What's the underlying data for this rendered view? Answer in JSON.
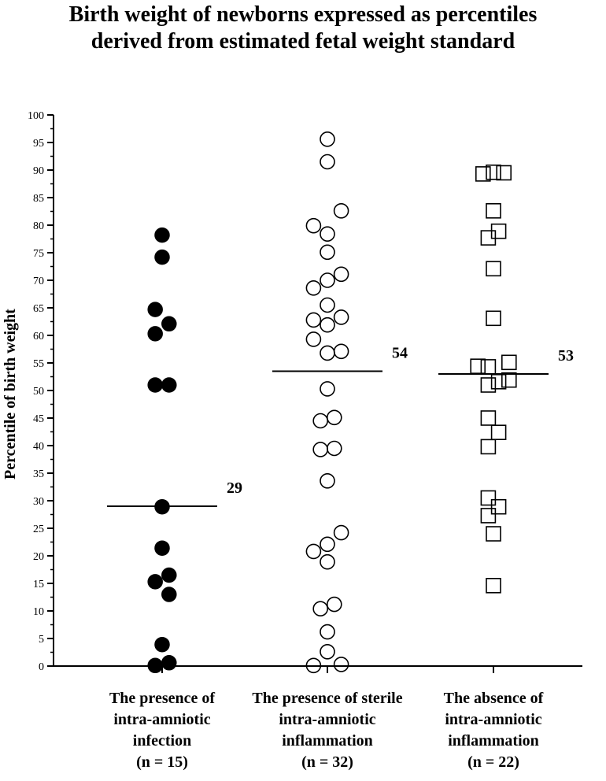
{
  "chart_data": {
    "type": "scatter",
    "title_lines": [
      "Birth weight of newborns expressed as percentiles",
      "derived from estimated fetal weight standard"
    ],
    "ylabel": "Percentile of birth weight",
    "ylim": [
      0,
      100
    ],
    "yticks": [
      "0",
      "5",
      "10",
      "15",
      "20",
      "25",
      "30",
      "35",
      "40",
      "45",
      "50",
      "55",
      "60",
      "65",
      "70",
      "75",
      "80",
      "85",
      "90",
      "95",
      "100"
    ],
    "grid": false,
    "groups": [
      {
        "label_lines": [
          "The presence of",
          "intra-amniotic",
          "infection",
          "(n = 15)"
        ],
        "marker": "filled-circle",
        "median": 29,
        "median_label": "29",
        "points": [
          {
            "y": 78.2,
            "jitter": 0.0
          },
          {
            "y": 74.2,
            "jitter": 0.0
          },
          {
            "y": 64.7,
            "jitter": -0.4
          },
          {
            "y": 62.1,
            "jitter": 0.4
          },
          {
            "y": 60.3,
            "jitter": -0.4
          },
          {
            "y": 51.0,
            "jitter": -0.4
          },
          {
            "y": 51.0,
            "jitter": 0.4
          },
          {
            "y": 28.9,
            "jitter": 0.0
          },
          {
            "y": 21.4,
            "jitter": 0.0
          },
          {
            "y": 16.5,
            "jitter": 0.4
          },
          {
            "y": 15.3,
            "jitter": -0.4
          },
          {
            "y": 13.0,
            "jitter": 0.4
          },
          {
            "y": 3.9,
            "jitter": 0.0
          },
          {
            "y": 0.6,
            "jitter": 0.4
          },
          {
            "y": 0.1,
            "jitter": -0.4
          }
        ]
      },
      {
        "label_lines": [
          "The presence of sterile",
          "intra-amniotic",
          "inflammation",
          "(n = 32)"
        ],
        "marker": "open-circle",
        "median": 53.5,
        "median_label": "54",
        "points": [
          {
            "y": 95.6,
            "jitter": 0.0
          },
          {
            "y": 91.5,
            "jitter": 0.0
          },
          {
            "y": 82.6,
            "jitter": 0.8
          },
          {
            "y": 79.9,
            "jitter": -0.8
          },
          {
            "y": 78.4,
            "jitter": 0.0
          },
          {
            "y": 75.1,
            "jitter": 0.0
          },
          {
            "y": 71.1,
            "jitter": 0.8
          },
          {
            "y": 70.0,
            "jitter": 0.0
          },
          {
            "y": 68.6,
            "jitter": -0.8
          },
          {
            "y": 65.5,
            "jitter": 0.0
          },
          {
            "y": 63.3,
            "jitter": 0.8
          },
          {
            "y": 62.8,
            "jitter": -0.8
          },
          {
            "y": 61.9,
            "jitter": 0.0
          },
          {
            "y": 59.3,
            "jitter": -0.8
          },
          {
            "y": 57.1,
            "jitter": 0.8
          },
          {
            "y": 56.8,
            "jitter": 0.0
          },
          {
            "y": 50.3,
            "jitter": 0.0
          },
          {
            "y": 45.1,
            "jitter": 0.4
          },
          {
            "y": 44.5,
            "jitter": -0.4
          },
          {
            "y": 39.5,
            "jitter": 0.4
          },
          {
            "y": 39.3,
            "jitter": -0.4
          },
          {
            "y": 33.6,
            "jitter": 0.0
          },
          {
            "y": 24.2,
            "jitter": 0.8
          },
          {
            "y": 22.1,
            "jitter": 0.0
          },
          {
            "y": 20.8,
            "jitter": -0.8
          },
          {
            "y": 18.9,
            "jitter": 0.0
          },
          {
            "y": 11.2,
            "jitter": 0.4
          },
          {
            "y": 10.4,
            "jitter": -0.4
          },
          {
            "y": 6.2,
            "jitter": 0.0
          },
          {
            "y": 2.6,
            "jitter": 0.0
          },
          {
            "y": 0.3,
            "jitter": 0.8
          },
          {
            "y": 0.1,
            "jitter": -0.8
          }
        ]
      },
      {
        "label_lines": [
          "The absence of",
          "intra-amniotic",
          "inflammation",
          "(n = 22)"
        ],
        "marker": "open-square",
        "median": 53,
        "median_label": "53",
        "points": [
          {
            "y": 89.6,
            "jitter": 0.0
          },
          {
            "y": 89.5,
            "jitter": 0.6
          },
          {
            "y": 89.3,
            "jitter": -0.6
          },
          {
            "y": 82.6,
            "jitter": 0.0
          },
          {
            "y": 78.9,
            "jitter": 0.3
          },
          {
            "y": 77.7,
            "jitter": -0.3
          },
          {
            "y": 72.1,
            "jitter": 0.0
          },
          {
            "y": 63.1,
            "jitter": 0.0
          },
          {
            "y": 55.1,
            "jitter": 0.9
          },
          {
            "y": 54.4,
            "jitter": -0.9
          },
          {
            "y": 54.3,
            "jitter": -0.3
          },
          {
            "y": 51.9,
            "jitter": 0.9
          },
          {
            "y": 51.6,
            "jitter": 0.3
          },
          {
            "y": 51.0,
            "jitter": -0.3
          },
          {
            "y": 45.0,
            "jitter": -0.3
          },
          {
            "y": 42.4,
            "jitter": 0.3
          },
          {
            "y": 39.8,
            "jitter": -0.3
          },
          {
            "y": 30.5,
            "jitter": -0.3
          },
          {
            "y": 28.9,
            "jitter": 0.3
          },
          {
            "y": 27.3,
            "jitter": -0.3
          },
          {
            "y": 24.0,
            "jitter": 0.0
          },
          {
            "y": 14.6,
            "jitter": 0.0
          }
        ]
      }
    ]
  }
}
